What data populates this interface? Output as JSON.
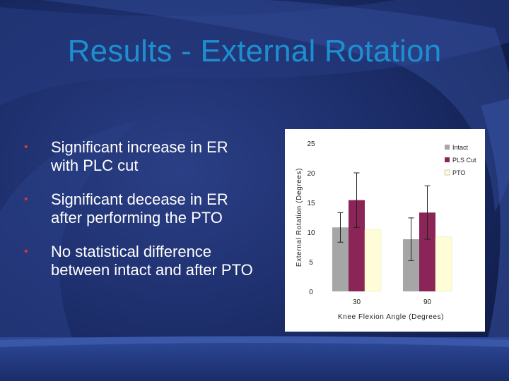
{
  "slide": {
    "title": "Results - External Rotation",
    "bullets": [
      "Significant increase in ER with PLC cut",
      "Significant decease in ER after performing the PTO",
      "No statistical difference between intact and after PTO"
    ]
  },
  "chart_data": {
    "type": "bar",
    "categories": [
      "30",
      "90"
    ],
    "series": [
      {
        "name": "Intact",
        "values": [
          10.8,
          8.8
        ],
        "error": [
          2.5,
          3.6
        ],
        "color": "#a6a6a6"
      },
      {
        "name": "PLS Cut",
        "values": [
          15.4,
          13.3
        ],
        "error": [
          4.6,
          4.5
        ],
        "color": "#8b2457"
      },
      {
        "name": "PTO",
        "values": [
          10.4,
          9.2
        ],
        "error": [
          0.0,
          0.0
        ],
        "color": "#fffdd8"
      }
    ],
    "title": "",
    "xlabel": "Knee Flexion Angle (Degrees)",
    "ylabel": "External Rotation (Degrees)",
    "ylim": [
      0,
      25
    ],
    "yticks": [
      "0",
      "5",
      "10",
      "15",
      "20",
      "25"
    ],
    "grid": false,
    "legend": "top-right"
  }
}
